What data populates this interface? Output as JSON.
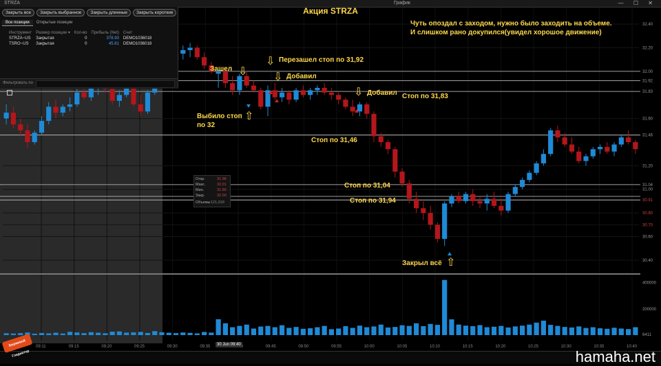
{
  "topbar": {
    "symbol": "STRZA",
    "chart_tab": "График",
    "window_buttons": "— ☐ ✕"
  },
  "title": "Акция STRZA",
  "positions_panel": {
    "buttons": [
      "Закрыть все",
      "Закрыть выбранное",
      "Закрыть длинные",
      "Закрыть короткие"
    ],
    "tabs": [
      "Все позиции",
      "Открытые позиции"
    ],
    "columns": [
      "Инструмент",
      "Размер позиции ▾",
      "Кол-во",
      "Прибыль (Net)",
      "Счет"
    ],
    "rows": [
      {
        "instrument": "STRZA~US",
        "status": "Закрытая",
        "qty": "0",
        "pnl": "378.93",
        "account": "DEMO1036018"
      },
      {
        "instrument": "TSRO~US",
        "status": "Закрытая",
        "qty": "0",
        "pnl": "45.81",
        "account": "DEMO1036018"
      }
    ],
    "filter_label": "Фильтровать по"
  },
  "ohlc_box": {
    "labels": [
      "Откр.",
      "Макс.",
      "Мин.",
      "Закр.",
      "Объемы"
    ],
    "values": [
      "31.98",
      "32.01",
      "31.86",
      "32.00",
      "121,018"
    ]
  },
  "note": "Чуть опоздал с заходом, нужно было заходить на объеме. И слишком рано докупился(увидел хорошое движение)",
  "annotations": {
    "entered": "Зашел",
    "reentered": "Перезашел  стоп по 31,92",
    "added1": "Добавил",
    "added2": "Добавил",
    "stopped_out": "Выбило стоп по 32",
    "stop_3183": "Стоп по 31,83",
    "stop_3146": "Стоп по 31,46",
    "stop_3104": "Стоп по 31,04",
    "stop_3094": "Стоп по 31,94",
    "closed_all": "Закрыл всё"
  },
  "time_tag": "30 Jun 09:40",
  "brand": "hamaha.net",
  "logo_text": "Биржевой Гладиатор",
  "colors": {
    "up": "#1f8ad6",
    "down": "#b3161c",
    "annotation": "#ffd84a",
    "level_line": "#d0d0d0",
    "volume": "#1f8ad6"
  },
  "chart_data": {
    "type": "candlestick",
    "title": "Акция STRZA",
    "x_ticks": [
      "09:11",
      "09:15",
      "09:20",
      "09:25",
      "09:30",
      "09:35",
      "09:40",
      "09:45",
      "09:50",
      "09:55",
      "10:00",
      "10:05",
      "10:10",
      "10:15",
      "10:20",
      "10:25",
      "10:30",
      "10:35",
      "10:40"
    ],
    "y_ticks": [
      "32.40",
      "32.20",
      "32.00",
      "31.92",
      "31.83",
      "31.60",
      "31.46",
      "31.20",
      "31.04",
      "31.00",
      "30.91",
      "30.80",
      "30.70",
      "30.60",
      "30.40"
    ],
    "ylim": [
      30.3,
      32.5
    ],
    "levels": [
      32.0,
      31.92,
      31.83,
      31.46,
      31.04,
      30.94,
      30.91
    ],
    "volume_ticks": [
      "400000",
      "200000",
      "6411"
    ],
    "volume_max": 450000,
    "candles": [
      [
        31.6,
        31.72,
        31.55,
        31.65
      ],
      [
        31.65,
        31.7,
        31.52,
        31.55
      ],
      [
        31.55,
        31.6,
        31.45,
        31.5
      ],
      [
        31.5,
        31.55,
        31.35,
        31.4
      ],
      [
        31.4,
        31.5,
        31.38,
        31.48
      ],
      [
        31.48,
        31.62,
        31.46,
        31.58
      ],
      [
        31.58,
        31.74,
        31.55,
        31.7
      ],
      [
        31.7,
        31.76,
        31.6,
        31.65
      ],
      [
        31.65,
        31.72,
        31.62,
        31.7
      ],
      [
        31.7,
        31.78,
        31.66,
        31.72
      ],
      [
        31.72,
        31.85,
        31.7,
        31.82
      ],
      [
        31.82,
        31.88,
        31.76,
        31.78
      ],
      [
        31.78,
        31.9,
        31.75,
        31.86
      ],
      [
        31.86,
        31.92,
        31.8,
        31.9
      ],
      [
        31.9,
        31.95,
        31.82,
        31.85
      ],
      [
        31.85,
        31.88,
        31.72,
        31.75
      ],
      [
        31.75,
        31.84,
        31.7,
        31.8
      ],
      [
        31.8,
        31.92,
        31.78,
        31.88
      ],
      [
        31.88,
        31.94,
        31.7,
        31.72
      ],
      [
        31.72,
        31.8,
        31.62,
        31.66
      ],
      [
        31.66,
        31.84,
        31.64,
        31.82
      ],
      [
        31.82,
        31.98,
        31.8,
        31.95
      ],
      [
        31.95,
        32.08,
        31.92,
        32.05
      ],
      [
        32.05,
        32.12,
        31.98,
        32.1
      ],
      [
        32.1,
        32.2,
        32.05,
        32.15
      ],
      [
        32.15,
        32.22,
        32.1,
        32.18
      ],
      [
        32.18,
        32.24,
        32.12,
        32.2
      ],
      [
        32.2,
        32.22,
        32.1,
        32.12
      ],
      [
        32.12,
        32.16,
        32.02,
        32.05
      ],
      [
        32.05,
        32.08,
        31.98,
        32.0
      ],
      [
        31.98,
        32.01,
        31.86,
        32.0
      ],
      [
        32.0,
        32.02,
        31.86,
        31.9
      ],
      [
        31.9,
        31.96,
        31.8,
        31.84
      ],
      [
        31.84,
        31.98,
        31.8,
        31.96
      ],
      [
        31.96,
        32.0,
        31.86,
        31.88
      ],
      [
        31.88,
        31.92,
        31.82,
        31.84
      ],
      [
        31.84,
        31.86,
        31.68,
        31.7
      ],
      [
        31.7,
        31.88,
        31.62,
        31.84
      ],
      [
        31.84,
        31.9,
        31.76,
        31.78
      ],
      [
        31.78,
        31.86,
        31.74,
        31.82
      ],
      [
        31.82,
        31.84,
        31.72,
        31.76
      ],
      [
        31.76,
        31.86,
        31.74,
        31.84
      ],
      [
        31.84,
        31.88,
        31.78,
        31.8
      ],
      [
        31.8,
        31.86,
        31.76,
        31.84
      ],
      [
        31.84,
        31.88,
        31.8,
        31.86
      ],
      [
        31.86,
        31.9,
        31.8,
        31.82
      ],
      [
        31.82,
        31.86,
        31.76,
        31.8
      ],
      [
        31.8,
        31.82,
        31.72,
        31.76
      ],
      [
        31.76,
        31.78,
        31.68,
        31.7
      ],
      [
        31.7,
        31.76,
        31.62,
        31.66
      ],
      [
        31.66,
        31.74,
        31.62,
        31.72
      ],
      [
        31.72,
        31.74,
        31.6,
        31.64
      ],
      [
        31.64,
        31.66,
        31.4,
        31.45
      ],
      [
        31.45,
        31.48,
        31.36,
        31.4
      ],
      [
        31.4,
        31.42,
        31.3,
        31.34
      ],
      [
        31.34,
        31.36,
        31.1,
        31.15
      ],
      [
        31.15,
        31.18,
        31.02,
        31.05
      ],
      [
        31.05,
        31.08,
        30.88,
        30.92
      ],
      [
        30.92,
        30.98,
        30.8,
        30.84
      ],
      [
        30.84,
        30.9,
        30.74,
        30.8
      ],
      [
        30.8,
        30.86,
        30.66,
        30.7
      ],
      [
        30.7,
        30.72,
        30.55,
        30.58
      ],
      [
        30.58,
        30.9,
        30.52,
        30.88
      ],
      [
        30.88,
        30.96,
        30.85,
        30.94
      ],
      [
        30.94,
        30.98,
        30.88,
        30.9
      ],
      [
        30.9,
        30.98,
        30.88,
        30.96
      ],
      [
        30.96,
        31.0,
        30.86,
        30.9
      ],
      [
        30.9,
        30.94,
        30.84,
        30.88
      ],
      [
        30.88,
        30.96,
        30.82,
        30.92
      ],
      [
        30.92,
        30.98,
        30.84,
        30.86
      ],
      [
        30.86,
        30.92,
        30.78,
        30.82
      ],
      [
        30.82,
        30.98,
        30.8,
        30.96
      ],
      [
        30.96,
        31.04,
        30.94,
        31.02
      ],
      [
        31.02,
        31.1,
        31.0,
        31.08
      ],
      [
        31.08,
        31.16,
        31.06,
        31.14
      ],
      [
        31.14,
        31.24,
        31.12,
        31.22
      ],
      [
        31.22,
        31.34,
        31.2,
        31.3
      ],
      [
        31.3,
        31.52,
        31.28,
        31.5
      ],
      [
        31.5,
        31.54,
        31.4,
        31.44
      ],
      [
        31.44,
        31.48,
        31.36,
        31.38
      ],
      [
        31.38,
        31.44,
        31.3,
        31.32
      ],
      [
        31.32,
        31.36,
        31.22,
        31.24
      ],
      [
        31.24,
        31.3,
        31.2,
        31.28
      ],
      [
        31.28,
        31.36,
        31.26,
        31.34
      ],
      [
        31.34,
        31.38,
        31.3,
        31.36
      ],
      [
        31.36,
        31.4,
        31.3,
        31.32
      ],
      [
        31.32,
        31.4,
        31.28,
        31.38
      ],
      [
        31.38,
        31.46,
        31.36,
        31.44
      ],
      [
        31.44,
        31.5,
        31.38,
        31.4
      ],
      [
        31.4,
        31.42,
        31.3,
        31.34
      ]
    ],
    "volumes": [
      14000,
      12000,
      15000,
      20000,
      11000,
      16000,
      13000,
      18000,
      12000,
      25000,
      20000,
      15000,
      22000,
      18000,
      14000,
      26000,
      28000,
      19000,
      21000,
      24000,
      16000,
      30000,
      22000,
      18000,
      15000,
      20000,
      17000,
      13000,
      24000,
      19000,
      121018,
      90000,
      60000,
      70000,
      80000,
      50000,
      65000,
      70000,
      60000,
      75000,
      55000,
      62000,
      48000,
      52000,
      60000,
      70000,
      45000,
      50000,
      68000,
      55000,
      72000,
      60000,
      66000,
      80000,
      58000,
      62000,
      75000,
      70000,
      90000,
      68000,
      85000,
      78000,
      420000,
      120000,
      80000,
      72000,
      68000,
      76000,
      60000,
      64000,
      70000,
      58000,
      66000,
      72000,
      80000,
      95000,
      110000,
      78000,
      70000,
      62000,
      58000,
      66000,
      54000,
      60000,
      52000,
      48000,
      56000,
      50000,
      46000,
      60000
    ]
  }
}
